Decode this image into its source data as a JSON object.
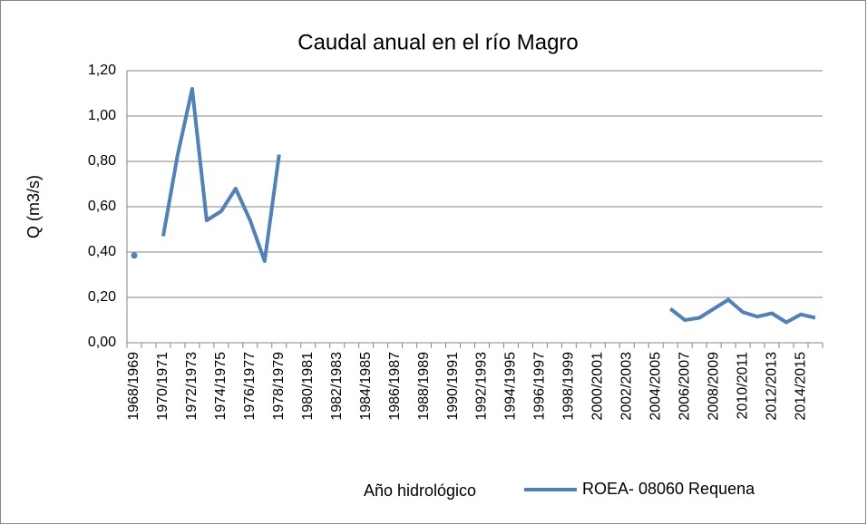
{
  "chart_data": {
    "type": "line",
    "title": "Caudal anual en el río Magro",
    "y_label": "Q (m3/s)",
    "x_label": "Año hidrológico",
    "categories": [
      "1968/1969",
      null,
      "1970/1971",
      null,
      "1972/1973",
      null,
      "1974/1975",
      null,
      "1976/1977",
      null,
      "1978/1979",
      null,
      "1980/1981",
      null,
      "1982/1983",
      null,
      "1984/1985",
      null,
      "1986/1987",
      null,
      "1988/1989",
      null,
      "1990/1991",
      null,
      "1992/1993",
      null,
      "1994/1995",
      null,
      "1996/1997",
      null,
      "1998/1999",
      null,
      "2000/2001",
      null,
      "2002/2003",
      null,
      "2004/2005",
      null,
      "2006/2007",
      null,
      "2008/2009",
      null,
      "2010/2011",
      null,
      "2012/2013",
      null,
      "2014/2015",
      null
    ],
    "series": [
      {
        "name": "ROEA- 08060 Requena",
        "color": "#4f81bd",
        "values": [
          0.385,
          null,
          0.47,
          0.83,
          1.12,
          0.54,
          0.58,
          0.68,
          0.54,
          0.36,
          0.83,
          null,
          null,
          null,
          null,
          null,
          null,
          null,
          null,
          null,
          null,
          null,
          null,
          null,
          null,
          null,
          null,
          null,
          null,
          null,
          null,
          null,
          null,
          null,
          null,
          null,
          null,
          0.15,
          0.1,
          0.11,
          0.15,
          0.19,
          0.135,
          0.115,
          0.13,
          0.09,
          0.125,
          0.11
        ]
      }
    ],
    "ylim": [
      0,
      1.2
    ],
    "yticks": [
      {
        "value": 0,
        "label": "0,00"
      },
      {
        "value": 0.2,
        "label": "0,20"
      },
      {
        "value": 0.4,
        "label": "0,40"
      },
      {
        "value": 0.6,
        "label": "0,60"
      },
      {
        "value": 0.8,
        "label": "0,80"
      },
      {
        "value": 1.0,
        "label": "1,00"
      },
      {
        "value": 1.2,
        "label": "1,20"
      }
    ],
    "grid": true
  }
}
